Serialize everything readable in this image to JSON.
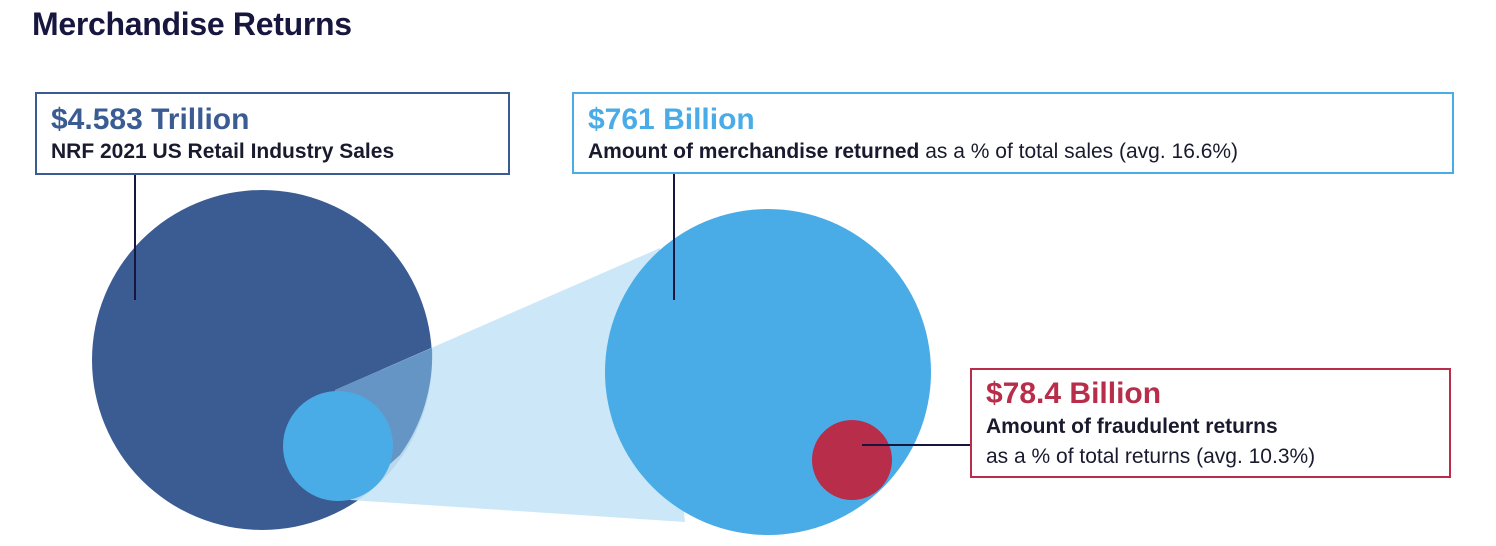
{
  "title": "Merchandise Returns",
  "colors": {
    "total_sales": "#3a5c93",
    "returns": "#4aace6",
    "fraud": "#b72d4a",
    "zoom_cone": "#c6e5f7",
    "title": "#16163f"
  },
  "total_sales": {
    "value": "$4.583 Trillion",
    "label": "NRF 2021 US Retail Industry Sales"
  },
  "returns": {
    "value": "$761 Billion",
    "label_bold": "Amount of merchandise returned",
    "label_rest": " as a % of total sales (avg. 16.6%)"
  },
  "fraud": {
    "value": "$78.4 Billion",
    "label_bold": "Amount of fraudulent returns",
    "label_rest": "as a % of total returns (avg. 10.3%)"
  }
}
